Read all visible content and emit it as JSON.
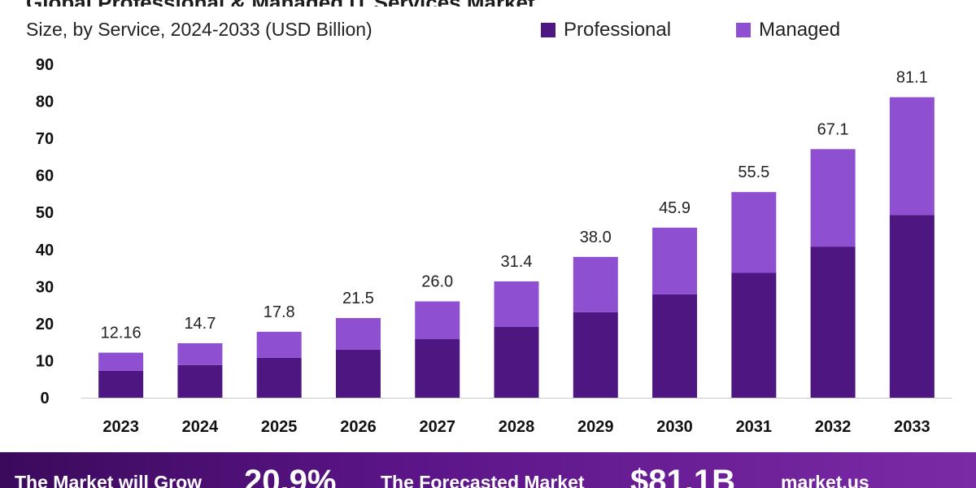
{
  "header": {
    "title_fragment": "Global Professional & Managed IT Services Market",
    "subtitle": "Size, by Service, 2024-2033 (USD Billion)"
  },
  "legend": [
    {
      "name": "Professional",
      "color": "#4e1680"
    },
    {
      "name": "Managed",
      "color": "#8e4fd1"
    }
  ],
  "chart_data": {
    "type": "bar",
    "stacked": true,
    "categories": [
      "2023",
      "2024",
      "2025",
      "2026",
      "2027",
      "2028",
      "2029",
      "2030",
      "2031",
      "2032",
      "2033"
    ],
    "series": [
      {
        "name": "Professional",
        "color": "#4e1680",
        "values": [
          7.3,
          8.8,
          10.8,
          13.0,
          15.8,
          19.1,
          23.1,
          27.9,
          33.7,
          40.8,
          49.3
        ]
      },
      {
        "name": "Managed",
        "color": "#8e4fd1",
        "values": [
          4.86,
          5.9,
          7.0,
          8.5,
          10.2,
          12.3,
          14.9,
          18.0,
          21.8,
          26.3,
          31.8
        ]
      }
    ],
    "totals_labels": [
      "12.16",
      "14.7",
      "17.8",
      "21.5",
      "26.0",
      "31.4",
      "38.0",
      "45.9",
      "55.5",
      "67.1",
      "81.1"
    ],
    "ylim": [
      0,
      90
    ],
    "yticks": [
      0,
      10,
      20,
      30,
      40,
      50,
      60,
      70,
      80,
      90
    ],
    "grid": false
  },
  "footer": {
    "grow_text": "The Market will Grow",
    "cagr_text": "20.9%",
    "forecast_text": "The Forecasted Market",
    "value_text": "$81.1B",
    "brand_text": "market.us"
  }
}
